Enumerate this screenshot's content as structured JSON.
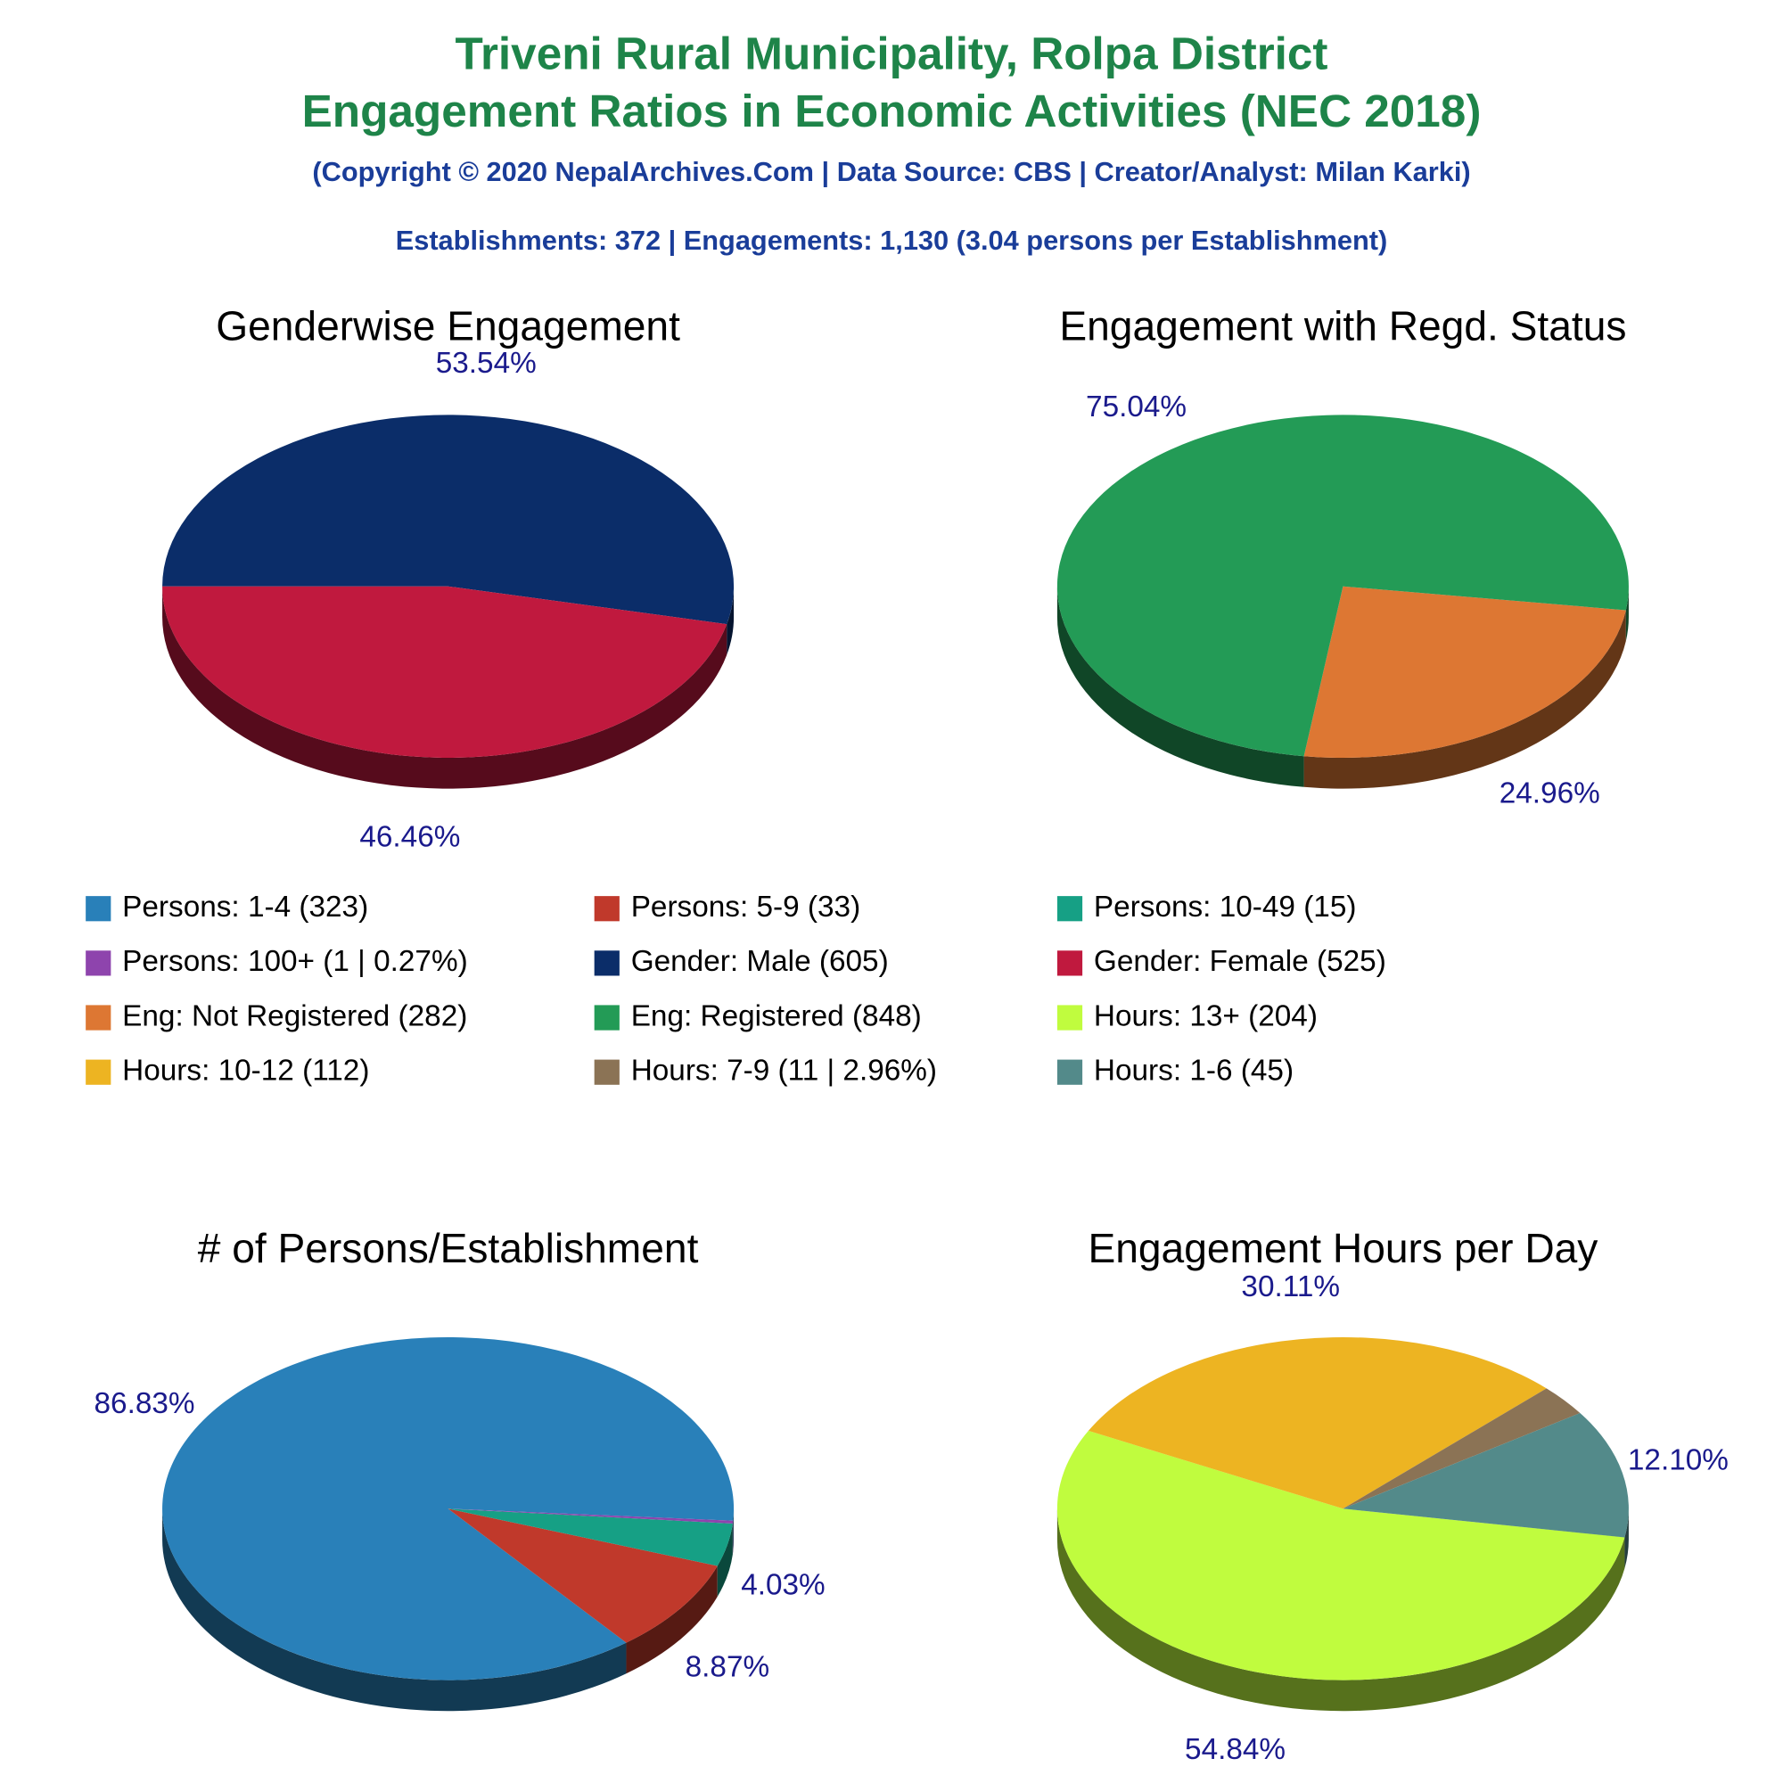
{
  "header": {
    "title_line1": "Triveni Rural Municipality, Rolpa District",
    "title_line2": "Engagement Ratios in Economic Activities (NEC 2018)",
    "copyright": "(Copyright © 2020 NepalArchives.Com | Data Source: CBS | Creator/Analyst: Milan Karki)",
    "summary": "Establishments: 372 | Engagements: 1,130 (3.04 persons per Establishment)"
  },
  "chart_data": [
    {
      "type": "pie",
      "title": "# of Persons/Establishment",
      "categories": [
        "Persons: 1-4 (323)",
        "Persons: 5-9 (33)",
        "Persons: 10-49 (15)",
        "Persons: 100+ (1 | 0.27%)"
      ],
      "values": [
        86.83,
        8.87,
        4.03,
        0.27
      ],
      "value_labels": [
        "86.83%",
        "8.87%",
        "4.03%",
        null
      ],
      "colors": [
        "#2980b9",
        "#c0392b",
        "#16a085",
        "#8e44ad"
      ]
    },
    {
      "type": "pie",
      "title": "Genderwise Engagement",
      "categories": [
        "Gender: Male (605)",
        "Gender: Female (525)"
      ],
      "values": [
        53.54,
        46.46
      ],
      "value_labels": [
        "53.54%",
        "46.46%"
      ],
      "colors": [
        "#0b2d69",
        "#c0193e"
      ]
    },
    {
      "type": "pie",
      "title": "Engagement with Regd. Status",
      "categories": [
        "Eng: Not Registered (282)",
        "Eng: Registered (848)"
      ],
      "values": [
        24.96,
        75.04
      ],
      "value_labels": [
        "24.96%",
        "75.04%"
      ],
      "colors": [
        "#dd7733",
        "#239b56"
      ]
    },
    {
      "type": "pie",
      "title": "Engagement Hours per Day",
      "categories": [
        "Hours: 13+ (204)",
        "Hours: 10-12 (112)",
        "Hours: 7-9 (11 | 2.96%)",
        "Hours: 1-6 (45)"
      ],
      "values": [
        54.84,
        30.11,
        2.96,
        12.1
      ],
      "value_labels": [
        "54.84%",
        "30.11%",
        null,
        "12.10%"
      ],
      "colors": [
        "#c0fc3e",
        "#edb422",
        "#8b7355",
        "#538a8a"
      ]
    }
  ]
}
